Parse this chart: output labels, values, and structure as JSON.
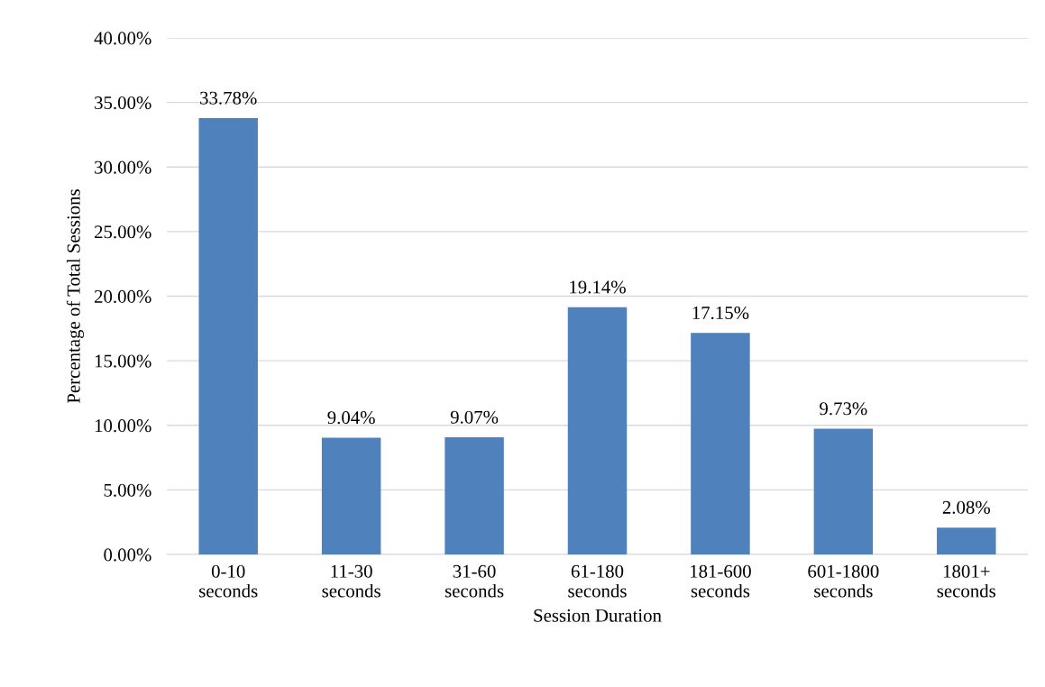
{
  "chart_data": {
    "type": "bar",
    "xlabel": "Session Duration",
    "ylabel": "Percentage of Total Sessions",
    "categories": [
      "0-10\nseconds",
      "11-30\nseconds",
      "31-60\nseconds",
      "61-180\nseconds",
      "181-600\nseconds",
      "601-1800\nseconds",
      "1801+\nseconds"
    ],
    "values": [
      33.78,
      9.04,
      9.07,
      19.14,
      17.15,
      9.73,
      2.08
    ],
    "value_labels": [
      "33.78%",
      "9.04%",
      "9.07%",
      "19.14%",
      "17.15%",
      "9.73%",
      "2.08%"
    ],
    "color": "#4f81bd",
    "ylim": [
      0,
      40
    ],
    "yticks": [
      {
        "value": 0,
        "label": "0.00%"
      },
      {
        "value": 5,
        "label": "5.00%"
      },
      {
        "value": 10,
        "label": "10.00%"
      },
      {
        "value": 15,
        "label": "15.00%"
      },
      {
        "value": 20,
        "label": "20.00%"
      },
      {
        "value": 25,
        "label": "25.00%"
      },
      {
        "value": 30,
        "label": "30.00%"
      },
      {
        "value": 35,
        "label": "35.00%"
      },
      {
        "value": 40,
        "label": "40.00%"
      }
    ],
    "grid": "y",
    "legend": false
  }
}
